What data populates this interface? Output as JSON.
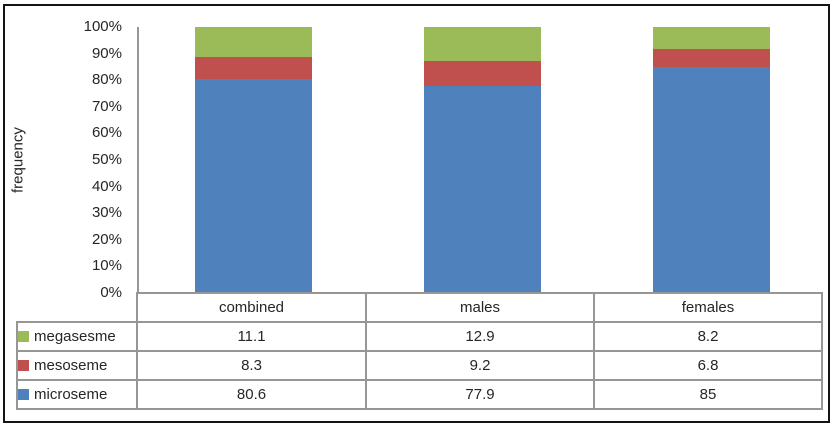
{
  "chart_data": {
    "type": "bar",
    "variant": "stacked-100-percent-column",
    "title": "",
    "xlabel": "",
    "ylabel": "frequency",
    "ylim": [
      0,
      100
    ],
    "yticks": [
      "0%",
      "10%",
      "20%",
      "30%",
      "40%",
      "50%",
      "60%",
      "70%",
      "80%",
      "90%",
      "100%"
    ],
    "grid": false,
    "legend_position": "data-table-left",
    "categories": [
      "combined",
      "males",
      "females"
    ],
    "series": [
      {
        "name": "megasesme",
        "color": "#9BBB59",
        "values": [
          11.1,
          12.9,
          8.2
        ]
      },
      {
        "name": "mesoseme",
        "color": "#C0504D",
        "values": [
          8.3,
          9.2,
          6.8
        ]
      },
      {
        "name": "microseme",
        "color": "#4F81BD",
        "values": [
          80.6,
          77.9,
          85
        ]
      }
    ],
    "colors": {
      "axis_line": "#969696",
      "table_border": "#969696",
      "outer_frame": "#141414",
      "text": "#262626",
      "background": "#ffffff"
    }
  }
}
